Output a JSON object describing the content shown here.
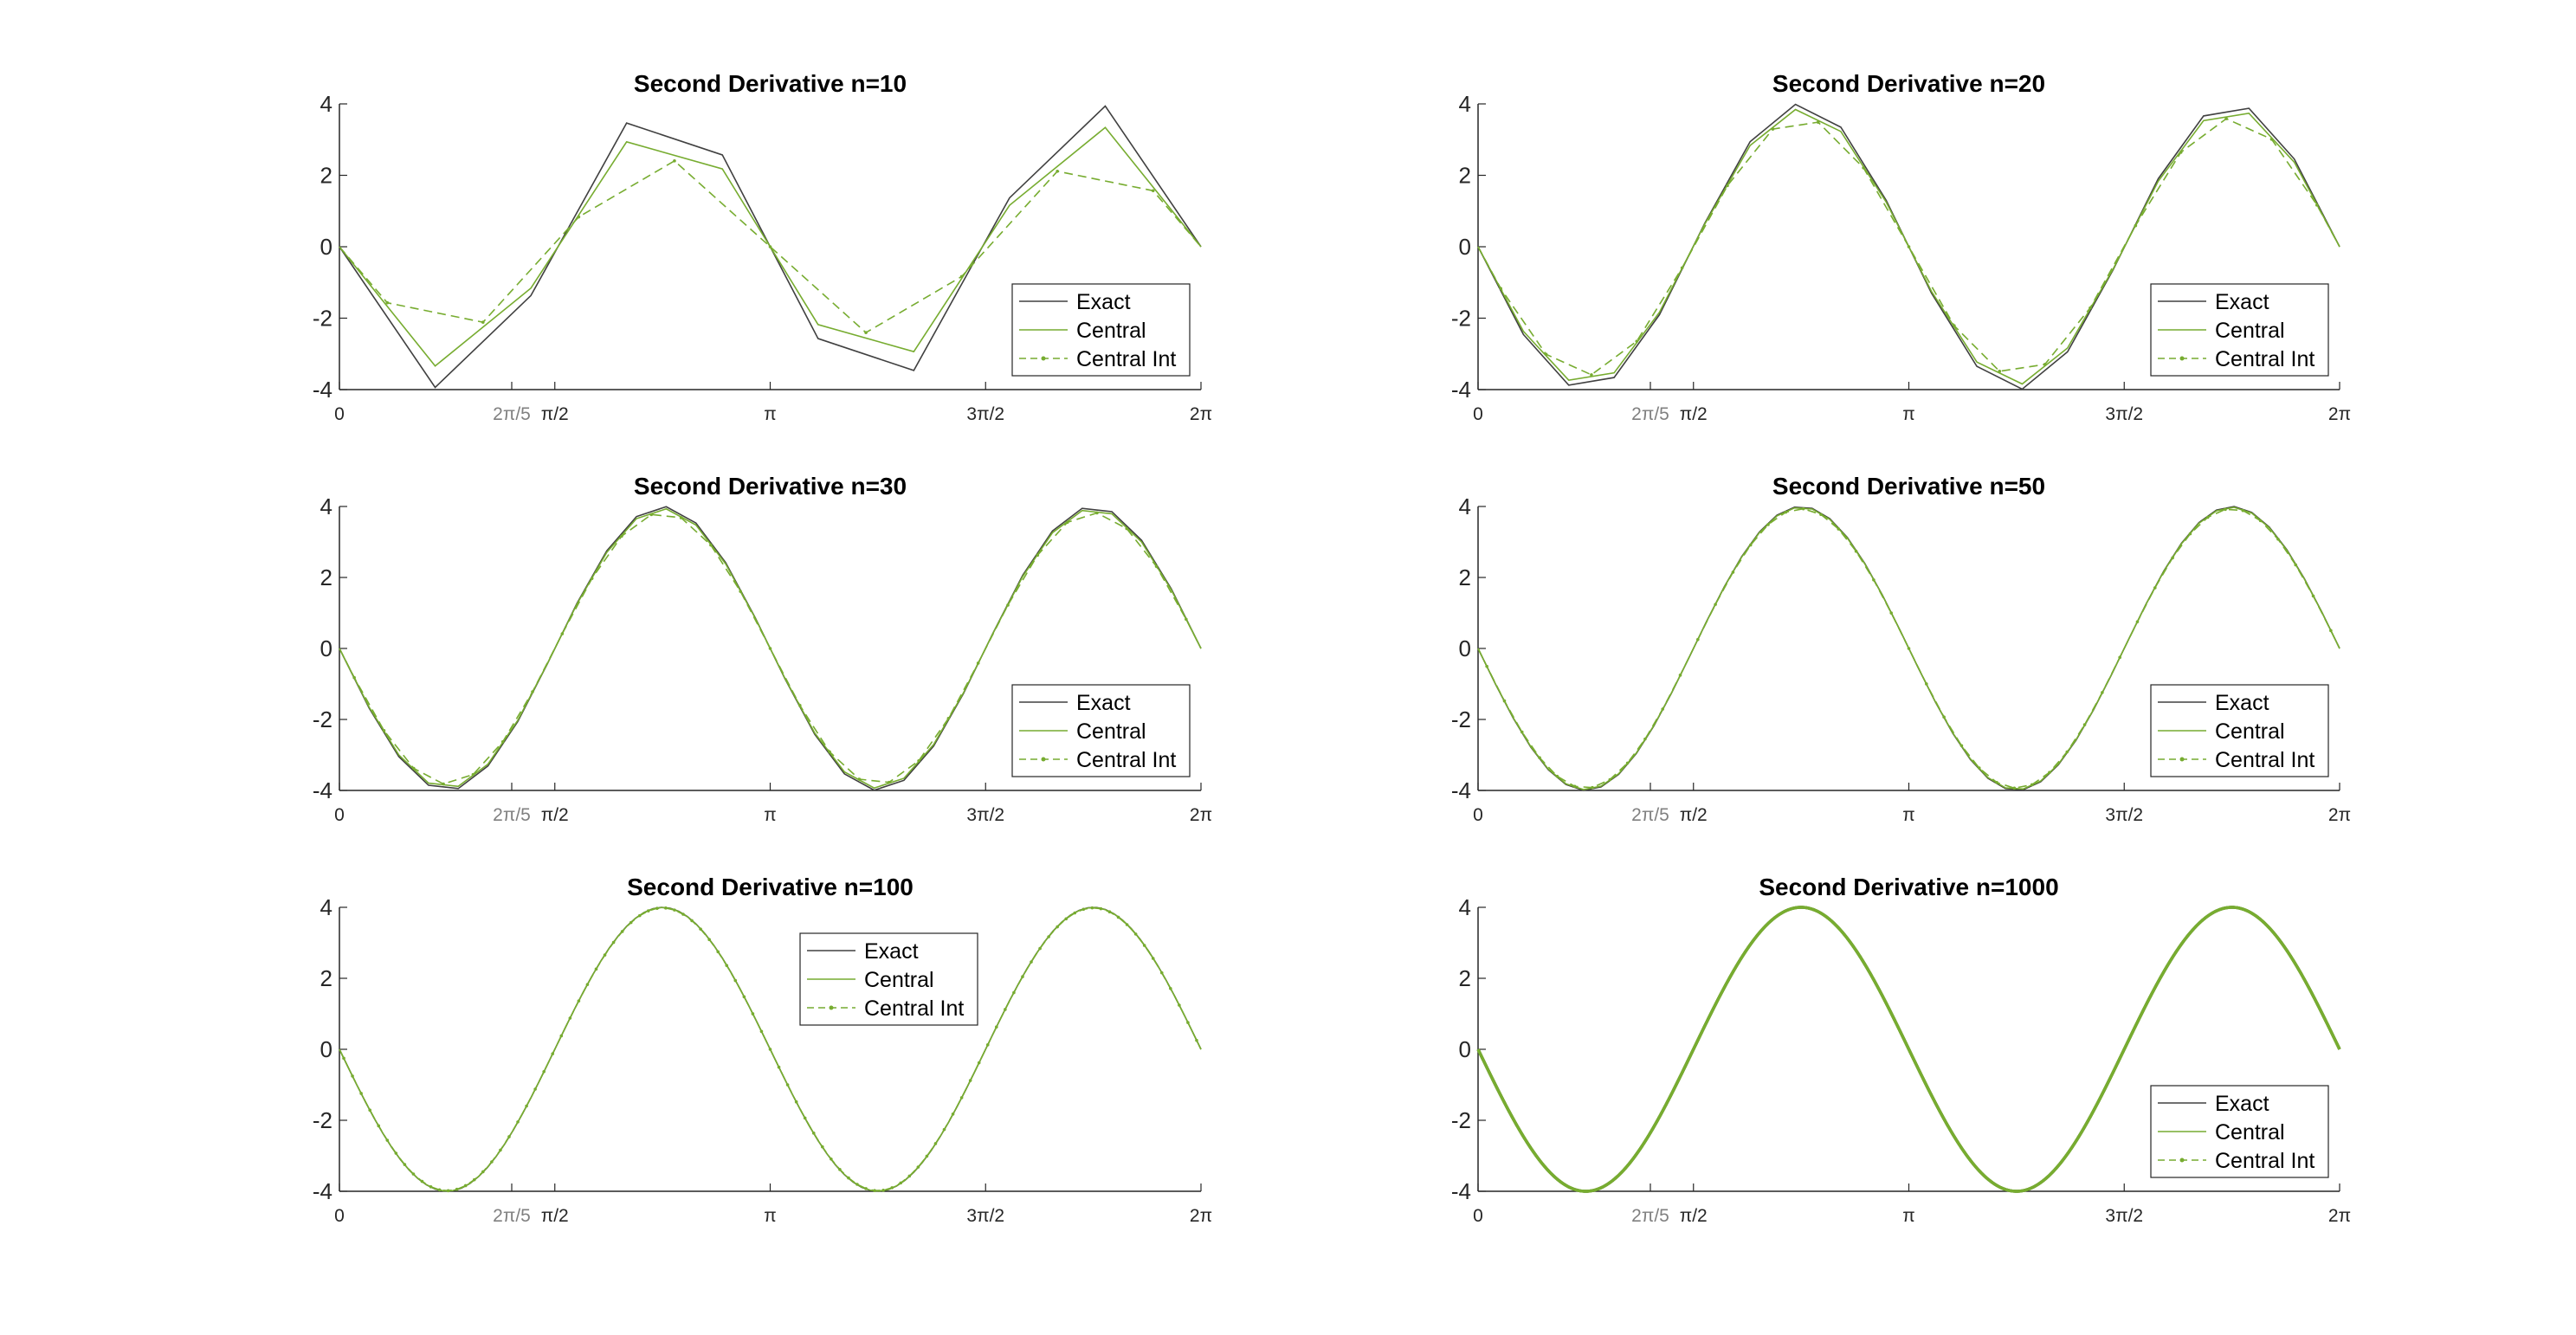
{
  "figure": {
    "background": "#ffffff",
    "colors": {
      "exact": "#404040",
      "central": "#77AC30",
      "central_int": "#77AC30",
      "axis": "#262626",
      "special_tick": "#808080"
    }
  },
  "chart_data": [
    {
      "type": "line",
      "title": "Second Derivative n=10",
      "n": 10,
      "xlim": [
        "0",
        "2π"
      ],
      "ylim": [
        -4,
        4
      ],
      "yticks": [
        "4",
        "2",
        "0",
        "-2",
        "-4"
      ],
      "xticks": [
        "0",
        "2π/5",
        "π/2",
        "π",
        "3π/2",
        "2π"
      ],
      "grid": false,
      "legend": {
        "position": "bottom-right",
        "entries": [
          "Exact",
          "Central",
          "Central Int"
        ]
      },
      "series": [
        {
          "name": "Exact",
          "function": "-4*sin(2x) sampled at n points",
          "style": "solid"
        },
        {
          "name": "Central",
          "function": "central difference of sin(2x), n points",
          "style": "solid"
        },
        {
          "name": "Central Int",
          "function": "central difference at interval midpoints",
          "style": "dash-dot markers"
        }
      ]
    },
    {
      "type": "line",
      "title": "Second Derivative n=20",
      "n": 20,
      "xlim": [
        "0",
        "2π"
      ],
      "ylim": [
        -4,
        4
      ],
      "yticks": [
        "4",
        "2",
        "0",
        "-2",
        "-4"
      ],
      "xticks": [
        "0",
        "2π/5",
        "π/2",
        "π",
        "3π/2",
        "2π"
      ],
      "grid": false,
      "legend": {
        "position": "bottom-right",
        "entries": [
          "Exact",
          "Central",
          "Central Int"
        ]
      },
      "series": [
        {
          "name": "Exact",
          "style": "solid"
        },
        {
          "name": "Central",
          "style": "solid"
        },
        {
          "name": "Central Int",
          "style": "dash-dot markers"
        }
      ]
    },
    {
      "type": "line",
      "title": "Second Derivative n=30",
      "n": 30,
      "xlim": [
        "0",
        "2π"
      ],
      "ylim": [
        -4,
        4
      ],
      "yticks": [
        "4",
        "2",
        "0",
        "-2",
        "-4"
      ],
      "xticks": [
        "0",
        "2π/5",
        "π/2",
        "π",
        "3π/2",
        "2π"
      ],
      "grid": false,
      "legend": {
        "position": "bottom-right",
        "entries": [
          "Exact",
          "Central",
          "Central Int"
        ]
      },
      "series": [
        {
          "name": "Exact",
          "style": "solid"
        },
        {
          "name": "Central",
          "style": "solid"
        },
        {
          "name": "Central Int",
          "style": "dash-dot markers"
        }
      ]
    },
    {
      "type": "line",
      "title": "Second Derivative n=50",
      "n": 50,
      "xlim": [
        "0",
        "2π"
      ],
      "ylim": [
        -4,
        4
      ],
      "yticks": [
        "4",
        "2",
        "0",
        "-2",
        "-4"
      ],
      "xticks": [
        "0",
        "2π/5",
        "π/2",
        "π",
        "3π/2",
        "2π"
      ],
      "grid": false,
      "legend": {
        "position": "bottom-right",
        "entries": [
          "Exact",
          "Central",
          "Central Int"
        ]
      },
      "series": [
        {
          "name": "Exact",
          "style": "solid"
        },
        {
          "name": "Central",
          "style": "solid"
        },
        {
          "name": "Central Int",
          "style": "dash-dot markers"
        }
      ]
    },
    {
      "type": "line",
      "title": "Second Derivative n=100",
      "n": 100,
      "xlim": [
        "0",
        "2π"
      ],
      "ylim": [
        -4,
        4
      ],
      "yticks": [
        "4",
        "2",
        "0",
        "-2",
        "-4"
      ],
      "xticks": [
        "0",
        "2π/5",
        "π/2",
        "π",
        "3π/2",
        "2π"
      ],
      "grid": false,
      "legend": {
        "position": "top-center",
        "entries": [
          "Exact",
          "Central",
          "Central Int"
        ]
      },
      "series": [
        {
          "name": "Exact",
          "style": "solid"
        },
        {
          "name": "Central",
          "style": "solid"
        },
        {
          "name": "Central Int",
          "style": "dash-dot markers"
        }
      ]
    },
    {
      "type": "line",
      "title": "Second Derivative n=1000",
      "n": 1000,
      "xlim": [
        "0",
        "2π"
      ],
      "ylim": [
        -4,
        4
      ],
      "yticks": [
        "4",
        "2",
        "0",
        "-2",
        "-4"
      ],
      "xticks": [
        "0",
        "2π/5",
        "π/2",
        "π",
        "3π/2",
        "2π"
      ],
      "grid": false,
      "legend": {
        "position": "bottom-right",
        "entries": [
          "Exact",
          "Central",
          "Central Int"
        ]
      },
      "series": [
        {
          "name": "Exact",
          "style": "solid"
        },
        {
          "name": "Central",
          "style": "solid"
        },
        {
          "name": "Central Int",
          "style": "dash-dot markers"
        }
      ]
    }
  ]
}
